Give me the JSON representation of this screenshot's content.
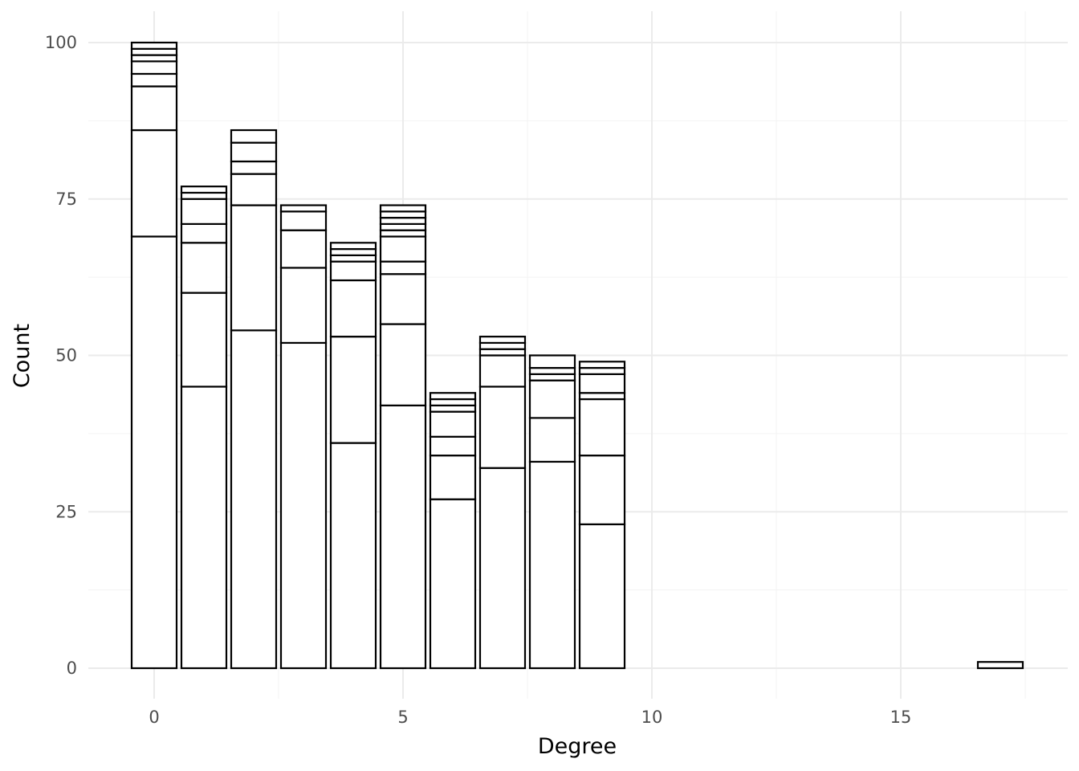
{
  "chart_data": {
    "type": "bar",
    "stacked": true,
    "xlabel": "Degree",
    "ylabel": "Count",
    "xlim": [
      -1.25,
      18.0
    ],
    "ylim": [
      -5,
      105
    ],
    "x_ticks": [
      0,
      5,
      10,
      15
    ],
    "y_ticks": [
      0,
      25,
      50,
      75,
      100
    ],
    "grid": true,
    "bar_fill": "#ffffff",
    "bar_stroke": "#000000",
    "bars": [
      {
        "x": 0,
        "boundaries": [
          69,
          86,
          93,
          95,
          97,
          98,
          99,
          100
        ]
      },
      {
        "x": 1,
        "boundaries": [
          45,
          60,
          68,
          71,
          75,
          76,
          77
        ]
      },
      {
        "x": 2,
        "boundaries": [
          54,
          74,
          79,
          81,
          84,
          86
        ]
      },
      {
        "x": 3,
        "boundaries": [
          52,
          64,
          70,
          73,
          74
        ]
      },
      {
        "x": 4,
        "boundaries": [
          36,
          53,
          62,
          65,
          66,
          67,
          68
        ]
      },
      {
        "x": 5,
        "boundaries": [
          42,
          55,
          63,
          65,
          69,
          70,
          71,
          72,
          73,
          74
        ]
      },
      {
        "x": 6,
        "boundaries": [
          27,
          34,
          37,
          41,
          42,
          43,
          44
        ]
      },
      {
        "x": 7,
        "boundaries": [
          32,
          45,
          50,
          51,
          52,
          53
        ]
      },
      {
        "x": 8,
        "boundaries": [
          33,
          40,
          46,
          47,
          48,
          50
        ]
      },
      {
        "x": 9,
        "boundaries": [
          23,
          34,
          43,
          44,
          47,
          48,
          49
        ]
      },
      {
        "x": 17,
        "boundaries": [
          1
        ]
      }
    ]
  }
}
